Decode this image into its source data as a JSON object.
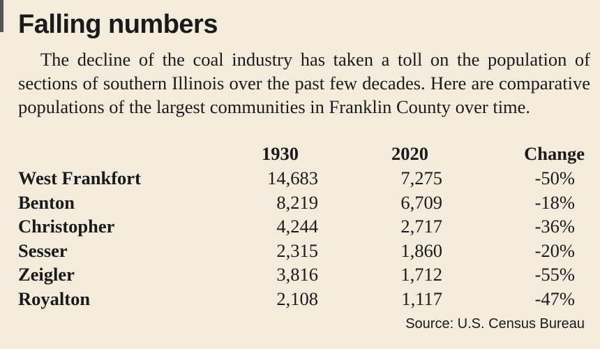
{
  "title": "Falling numbers",
  "intro": "The decline of the coal industry has taken a toll on the population of sections of southern Illinois over the past few decades. Here are comparative populations of the largest communities in Franklin County over time.",
  "source": "Source: U.S. Census Bureau",
  "colors": {
    "background": "#f3ebdc",
    "text": "#1a1a1a"
  },
  "chart_data": {
    "type": "table",
    "columns": [
      "",
      "1930",
      "2020",
      "Change"
    ],
    "rows": [
      [
        "West Frankfort",
        "14,683",
        "7,275",
        "-50%"
      ],
      [
        "Benton",
        "8,219",
        "6,709",
        "-18%"
      ],
      [
        "Christopher",
        "4,244",
        "2,717",
        "-36%"
      ],
      [
        "Sesser",
        "2,315",
        "1,860",
        "-20%"
      ],
      [
        "Zeigler",
        "3,816",
        "1,712",
        "-55%"
      ],
      [
        "Royalton",
        "2,108",
        "1,117",
        "-47%"
      ]
    ]
  }
}
